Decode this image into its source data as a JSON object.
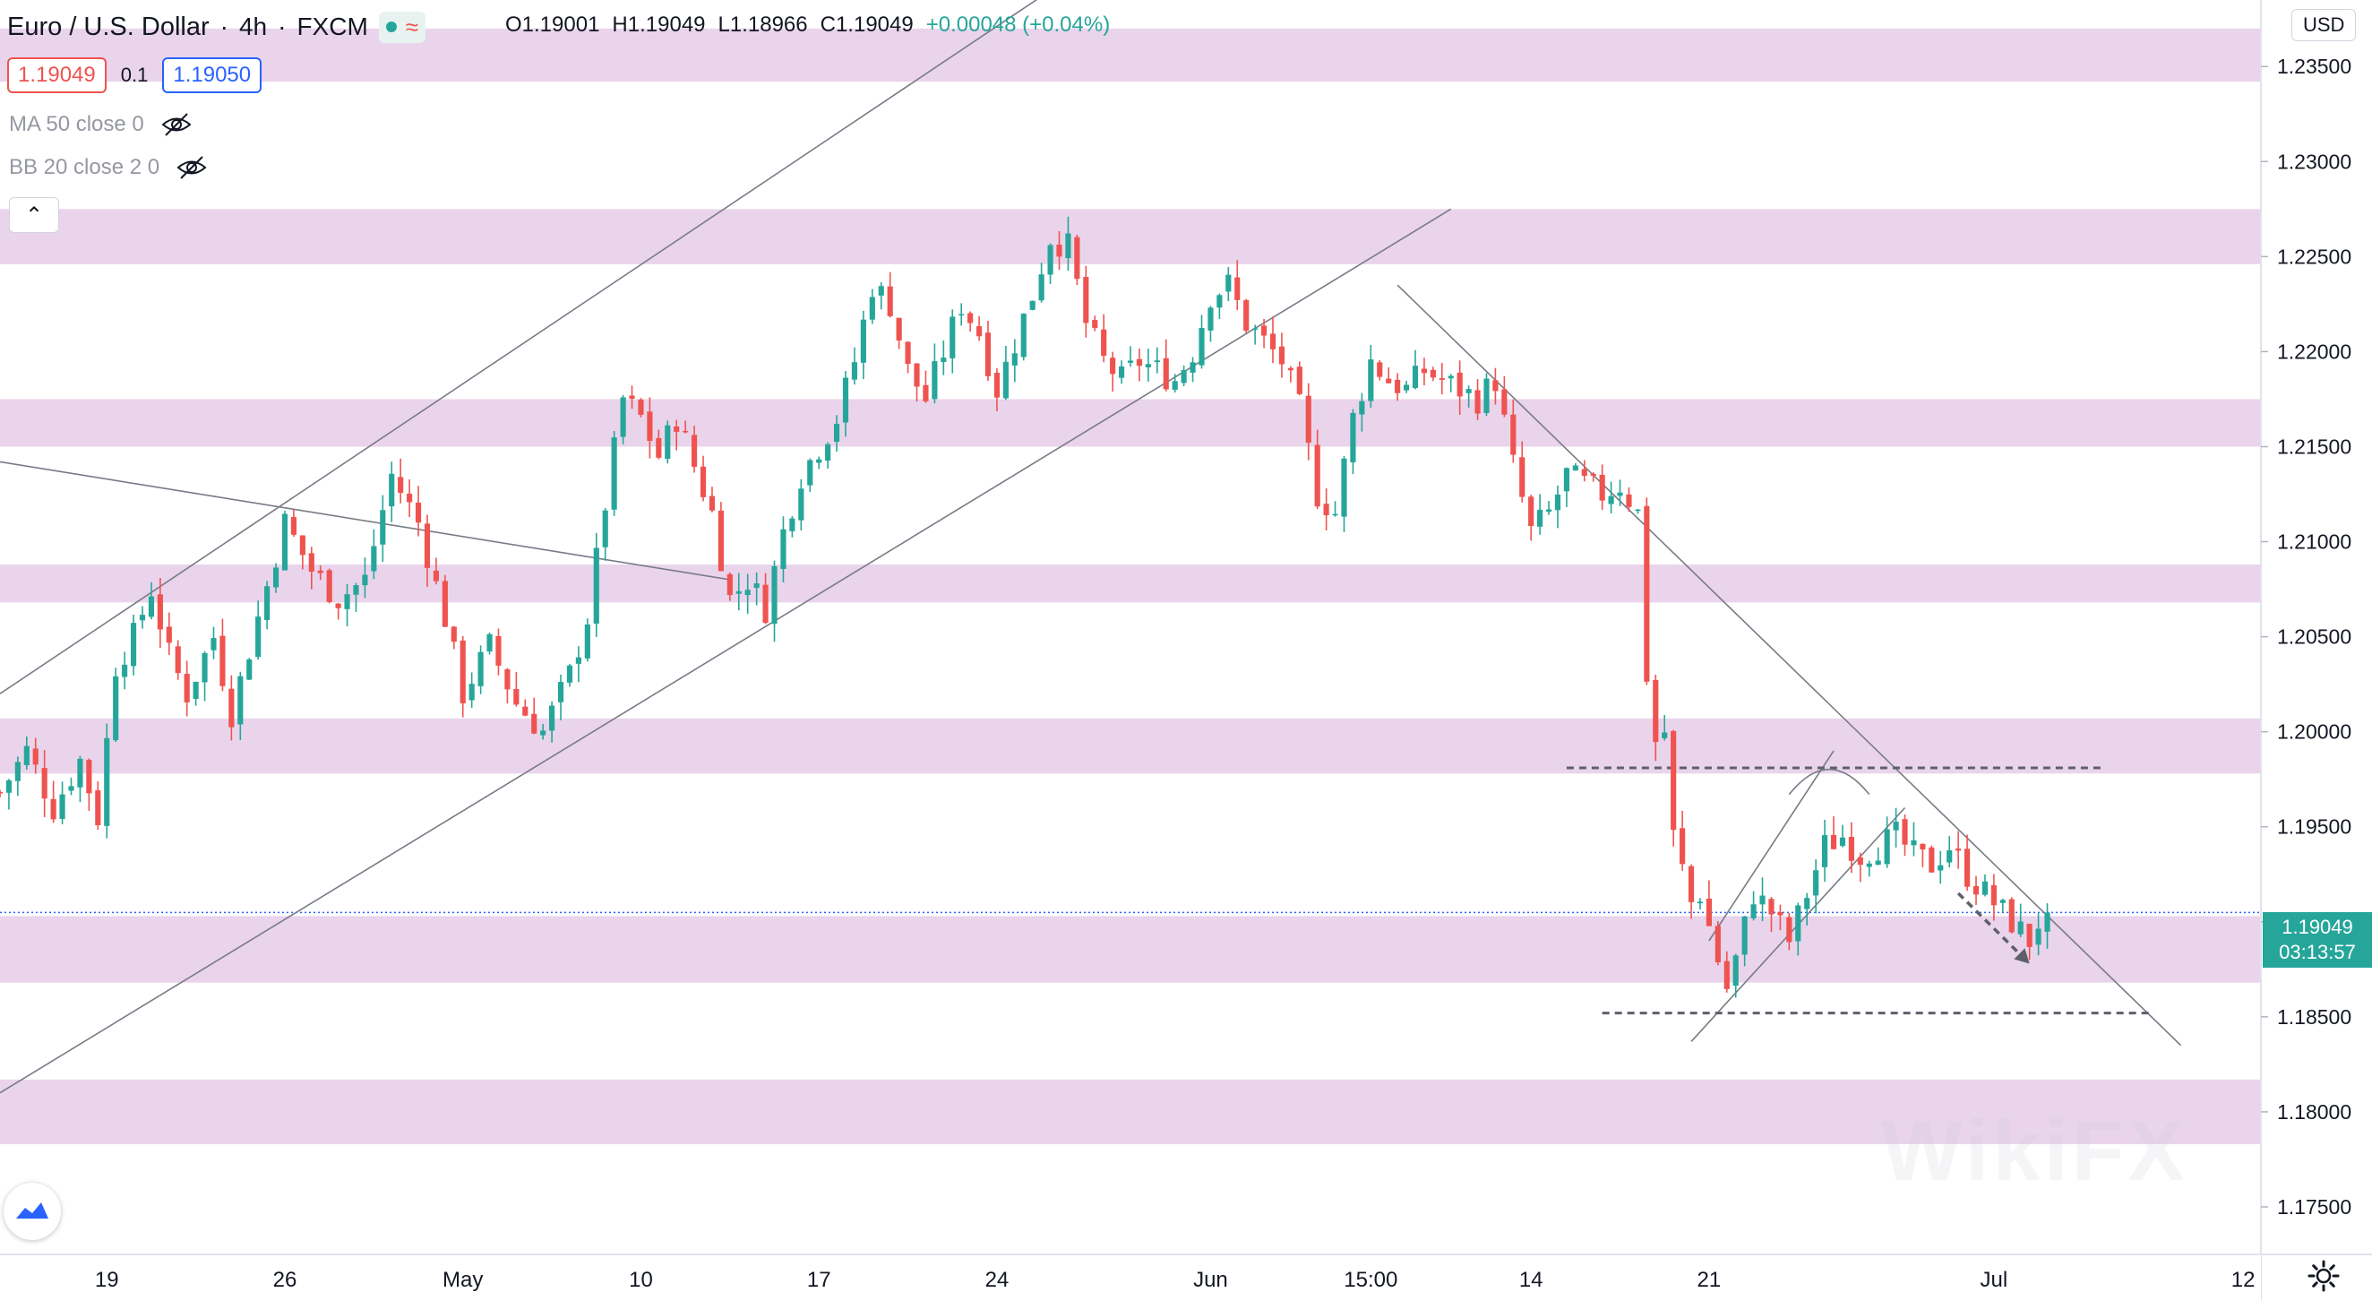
{
  "header": {
    "symbol": "Euro / U.S. Dollar",
    "interval": "4h",
    "exchange": "FXCM",
    "open": "O1.19001",
    "high": "H1.19049",
    "low": "L1.18966",
    "close": "C1.19049",
    "change": "+0.00048 (+0.04%)",
    "sell_price": "1.19049",
    "spread": "0.1",
    "buy_price": "1.19050",
    "currency": "USD"
  },
  "indicators": [
    {
      "label": "MA 50 close 0"
    },
    {
      "label": "BB 20 close 2 0"
    }
  ],
  "last_price_tag": {
    "price": "1.19049",
    "countdown": "03:13:57"
  },
  "colors": {
    "up": "#26a69a",
    "down": "#ef5350",
    "zone": "#e6cde9",
    "axis_text": "#131722"
  },
  "chart_data": {
    "type": "candlestick",
    "title": "Euro / U.S. Dollar · 4h · FXCM",
    "ylim": [
      1.1725,
      1.2385
    ],
    "yticks": [
      "1.23500",
      "1.23000",
      "1.22500",
      "1.22000",
      "1.21500",
      "1.21000",
      "1.20500",
      "1.20000",
      "1.19500",
      "1.19000",
      "1.18500",
      "1.18000",
      "1.17500"
    ],
    "xlim": [
      0,
      254
    ],
    "xticks": [
      {
        "label": "19",
        "bar": 12
      },
      {
        "label": "26",
        "bar": 32
      },
      {
        "label": "May",
        "bar": 52
      },
      {
        "label": "10",
        "bar": 72
      },
      {
        "label": "17",
        "bar": 92
      },
      {
        "label": "24",
        "bar": 112
      },
      {
        "label": "Jun",
        "bar": 136
      },
      {
        "label": "15:00",
        "bar": 154
      },
      {
        "label": "14",
        "bar": 172
      },
      {
        "label": "21",
        "bar": 192
      },
      {
        "label": "Jul",
        "bar": 224
      },
      {
        "label": "12",
        "bar": 252
      }
    ],
    "zones": [
      [
        1.2342,
        1.237
      ],
      [
        1.2246,
        1.2275
      ],
      [
        1.215,
        1.2175
      ],
      [
        1.2068,
        1.2088
      ],
      [
        1.1978,
        1.2007
      ],
      [
        1.1868,
        1.1903
      ],
      [
        1.1783,
        1.1817
      ]
    ],
    "anchors": [
      [
        0,
        1.1968
      ],
      [
        3,
        1.199
      ],
      [
        6,
        1.196
      ],
      [
        9,
        1.1985
      ],
      [
        11,
        1.1955
      ],
      [
        13,
        1.2035
      ],
      [
        15,
        1.205
      ],
      [
        17,
        1.2075
      ],
      [
        19,
        1.204
      ],
      [
        21,
        1.202
      ],
      [
        24,
        1.205
      ],
      [
        26,
        1.201
      ],
      [
        29,
        1.206
      ],
      [
        32,
        1.211
      ],
      [
        35,
        1.2085
      ],
      [
        38,
        1.207
      ],
      [
        41,
        1.208
      ],
      [
        44,
        1.2135
      ],
      [
        47,
        1.211
      ],
      [
        50,
        1.206
      ],
      [
        52,
        1.202
      ],
      [
        55,
        1.2045
      ],
      [
        58,
        1.2015
      ],
      [
        61,
        1.2
      ],
      [
        64,
        1.203
      ],
      [
        66,
        1.206
      ],
      [
        68,
        1.212
      ],
      [
        70,
        1.2175
      ],
      [
        72,
        1.2165
      ],
      [
        74,
        1.2145
      ],
      [
        76,
        1.2165
      ],
      [
        78,
        1.214
      ],
      [
        80,
        1.2115
      ],
      [
        82,
        1.207
      ],
      [
        84,
        1.208
      ],
      [
        86,
        1.2065
      ],
      [
        88,
        1.2105
      ],
      [
        90,
        1.2135
      ],
      [
        92,
        1.215
      ],
      [
        94,
        1.2165
      ],
      [
        96,
        1.2195
      ],
      [
        98,
        1.2235
      ],
      [
        100,
        1.2225
      ],
      [
        102,
        1.219
      ],
      [
        104,
        1.2175
      ],
      [
        106,
        1.22
      ],
      [
        108,
        1.2225
      ],
      [
        110,
        1.221
      ],
      [
        112,
        1.218
      ],
      [
        114,
        1.2205
      ],
      [
        116,
        1.223
      ],
      [
        118,
        1.226
      ],
      [
        120,
        1.2255
      ],
      [
        122,
        1.2215
      ],
      [
        124,
        1.2195
      ],
      [
        126,
        1.2185
      ],
      [
        128,
        1.2195
      ],
      [
        130,
        1.219
      ],
      [
        132,
        1.2185
      ],
      [
        134,
        1.22
      ],
      [
        136,
        1.223
      ],
      [
        138,
        1.2235
      ],
      [
        140,
        1.2215
      ],
      [
        142,
        1.2205
      ],
      [
        144,
        1.2195
      ],
      [
        146,
        1.217
      ],
      [
        148,
        1.2125
      ],
      [
        150,
        1.2115
      ],
      [
        152,
        1.2165
      ],
      [
        154,
        1.2195
      ],
      [
        156,
        1.2185
      ],
      [
        158,
        1.218
      ],
      [
        160,
        1.219
      ],
      [
        162,
        1.2185
      ],
      [
        164,
        1.218
      ],
      [
        166,
        1.2175
      ],
      [
        168,
        1.2185
      ],
      [
        170,
        1.214
      ],
      [
        172,
        1.2105
      ],
      [
        174,
        1.2115
      ],
      [
        176,
        1.2135
      ],
      [
        178,
        1.213
      ],
      [
        180,
        1.2125
      ],
      [
        182,
        1.213
      ],
      [
        184,
        1.2115
      ],
      [
        185,
        1.203
      ],
      [
        186,
        1.1995
      ],
      [
        187,
        1.2
      ],
      [
        188,
        1.1945
      ],
      [
        190,
        1.191
      ],
      [
        191,
        1.1915
      ],
      [
        193,
        1.188
      ],
      [
        194,
        1.1865
      ],
      [
        195,
        1.188
      ],
      [
        197,
        1.1915
      ],
      [
        199,
        1.1905
      ],
      [
        201,
        1.189
      ],
      [
        203,
        1.1915
      ],
      [
        205,
        1.194
      ],
      [
        207,
        1.1945
      ],
      [
        209,
        1.1935
      ],
      [
        211,
        1.194
      ],
      [
        213,
        1.1945
      ],
      [
        215,
        1.1935
      ],
      [
        217,
        1.193
      ],
      [
        219,
        1.194
      ],
      [
        221,
        1.1925
      ],
      [
        223,
        1.1915
      ],
      [
        225,
        1.1905
      ],
      [
        227,
        1.1895
      ],
      [
        228,
        1.189
      ],
      [
        229,
        1.19
      ],
      [
        230,
        1.19049
      ]
    ],
    "last_bar": 230,
    "last_price": 1.19049,
    "annotations": {
      "channel_upper": [
        [
          0,
          1.202
        ],
        [
          118,
          1.239
        ]
      ],
      "channel_lower": [
        [
          0,
          1.181
        ],
        [
          163,
          1.2275
        ]
      ],
      "descending_line": [
        [
          0,
          1.2142
        ],
        [
          82,
          1.208
        ]
      ],
      "downtrend": [
        [
          157,
          1.2235
        ],
        [
          245,
          1.1835
        ]
      ],
      "flag_upper": [
        [
          192,
          1.189
        ],
        [
          206,
          1.199
        ]
      ],
      "flag_lower": [
        [
          190,
          1.1837
        ],
        [
          214,
          1.196
        ]
      ],
      "resistance_dashed": [
        [
          176,
          1.1981
        ],
        [
          236,
          1.1981
        ]
      ],
      "support_dashed": [
        [
          180,
          1.1852
        ],
        [
          242,
          1.1852
        ]
      ],
      "arc": [
        [
          201,
          1.1967
        ],
        [
          210,
          1.1967
        ]
      ],
      "arrow": [
        [
          220,
          1.1915
        ],
        [
          228,
          1.1878
        ]
      ]
    }
  }
}
